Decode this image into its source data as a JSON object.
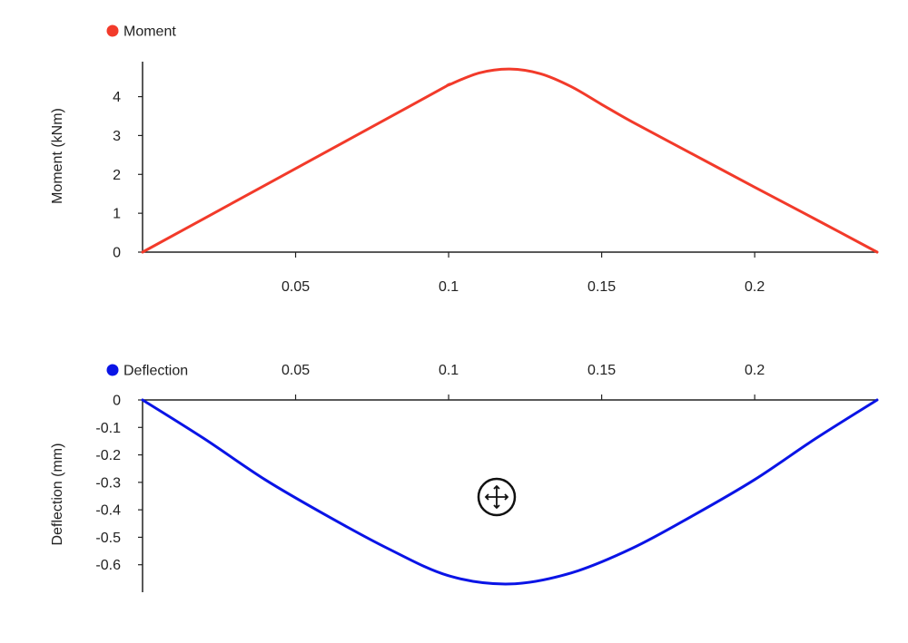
{
  "chart_data": [
    {
      "type": "line",
      "title": "",
      "legend": "top-left",
      "xlabel": "",
      "ylabel": "Moment (kNm)",
      "xlim": [
        0,
        0.24
      ],
      "ylim": [
        0,
        4.9
      ],
      "x_ticks": [
        {
          "value": 0.05,
          "label": "0.05"
        },
        {
          "value": 0.1,
          "label": "0.1"
        },
        {
          "value": 0.15,
          "label": "0.15"
        },
        {
          "value": 0.2,
          "label": "0.2"
        }
      ],
      "y_ticks": [
        {
          "value": 0,
          "label": "0"
        },
        {
          "value": 1,
          "label": "1"
        },
        {
          "value": 2,
          "label": "2"
        },
        {
          "value": 3,
          "label": "3"
        },
        {
          "value": 4,
          "label": "4"
        }
      ],
      "series": [
        {
          "name": "Moment",
          "color": "#f23a2a",
          "x": [
            0,
            0.02,
            0.04,
            0.06,
            0.08,
            0.099,
            0.1,
            0.11,
            0.12,
            0.13,
            0.14,
            0.15,
            0.16,
            0.18,
            0.2,
            0.22,
            0.24
          ],
          "y": [
            0,
            0.86,
            1.72,
            2.58,
            3.44,
            4.26,
            4.3,
            4.61,
            4.71,
            4.59,
            4.26,
            3.8,
            3.35,
            2.51,
            1.67,
            0.84,
            0
          ]
        }
      ]
    },
    {
      "type": "line",
      "title": "",
      "legend": "top-left",
      "xlabel": "",
      "ylabel": "Deflection (mm)",
      "xlim": [
        0,
        0.24
      ],
      "ylim": [
        -0.7,
        0
      ],
      "x_axis_position": "top",
      "x_ticks": [
        {
          "value": 0.05,
          "label": "0.05"
        },
        {
          "value": 0.1,
          "label": "0.1"
        },
        {
          "value": 0.15,
          "label": "0.15"
        },
        {
          "value": 0.2,
          "label": "0.2"
        }
      ],
      "y_ticks": [
        {
          "value": 0,
          "label": "0"
        },
        {
          "value": -0.1,
          "label": "-0.1"
        },
        {
          "value": -0.2,
          "label": "-0.2"
        },
        {
          "value": -0.3,
          "label": "-0.3"
        },
        {
          "value": -0.4,
          "label": "-0.4"
        },
        {
          "value": -0.5,
          "label": "-0.5"
        },
        {
          "value": -0.6,
          "label": "-0.6"
        }
      ],
      "series": [
        {
          "name": "Deflection",
          "color": "#0a14e6",
          "x": [
            0,
            0.02,
            0.04,
            0.06,
            0.08,
            0.1,
            0.12,
            0.14,
            0.16,
            0.18,
            0.2,
            0.22,
            0.24
          ],
          "y": [
            0,
            -0.14,
            -0.29,
            -0.42,
            -0.54,
            -0.64,
            -0.67,
            -0.63,
            -0.54,
            -0.42,
            -0.29,
            -0.14,
            0
          ]
        }
      ]
    }
  ],
  "cursor": {
    "icon": "move-cursor-icon"
  }
}
